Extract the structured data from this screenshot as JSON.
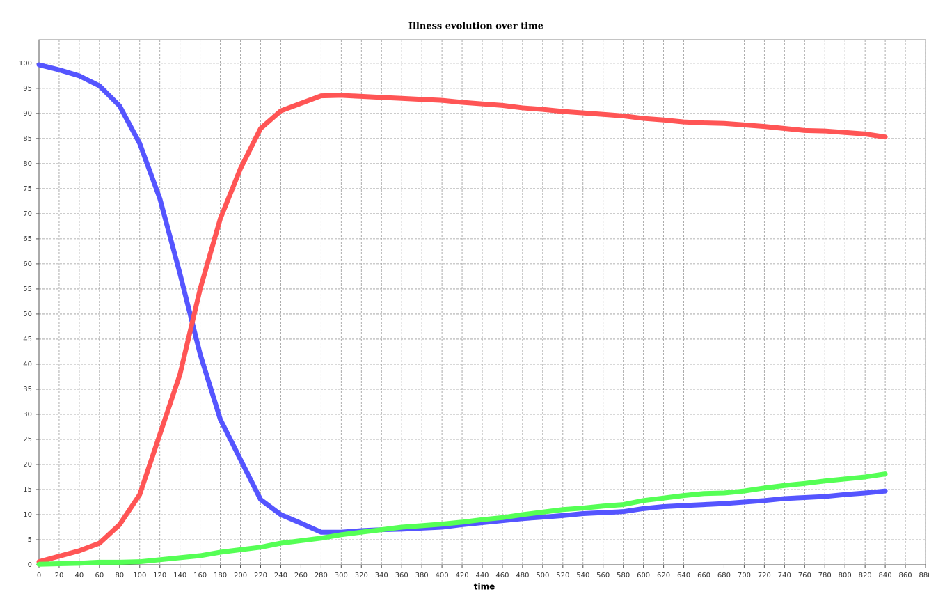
{
  "chart_data": {
    "type": "line",
    "title": "Illness evolution over time",
    "x_label": "time",
    "x": [
      0,
      20,
      40,
      60,
      80,
      100,
      120,
      140,
      160,
      180,
      200,
      220,
      240,
      260,
      280,
      300,
      320,
      340,
      360,
      380,
      400,
      420,
      440,
      460,
      480,
      500,
      520,
      540,
      560,
      580,
      600,
      620,
      640,
      660,
      680,
      700,
      720,
      740,
      760,
      780,
      800,
      820,
      840
    ],
    "series": [
      {
        "color": "#5555ff",
        "values": [
          99.7,
          98.7,
          97.5,
          95.5,
          91.5,
          84,
          73,
          58,
          42,
          29,
          21,
          13,
          10,
          8.3,
          6.5,
          6.5,
          6.8,
          7,
          7.1,
          7.3,
          7.5,
          8,
          8.4,
          8.8,
          9.2,
          9.5,
          9.8,
          10.2,
          10.4,
          10.6,
          11.2,
          11.6,
          11.8,
          12,
          12.2,
          12.5,
          12.8,
          13.2,
          13.4,
          13.6,
          14,
          14.3,
          14.7
        ]
      },
      {
        "color": "#ff5555",
        "values": [
          0.6,
          1.7,
          2.8,
          4.3,
          8,
          14,
          26,
          38,
          55,
          69,
          79,
          87,
          90.5,
          92,
          93.5,
          93.6,
          93.4,
          93.2,
          93,
          92.8,
          92.6,
          92.2,
          91.9,
          91.6,
          91.1,
          90.8,
          90.4,
          90.1,
          89.8,
          89.5,
          89,
          88.7,
          88.3,
          88.1,
          88,
          87.7,
          87.4,
          87,
          86.6,
          86.5,
          86.2,
          85.9,
          85.3
        ]
      },
      {
        "color": "#55ff55",
        "values": [
          0.1,
          0.2,
          0.3,
          0.5,
          0.5,
          0.6,
          1,
          1.4,
          1.8,
          2.5,
          3,
          3.5,
          4.3,
          4.8,
          5.3,
          6,
          6.5,
          7,
          7.5,
          7.8,
          8.1,
          8.5,
          9,
          9.4,
          10,
          10.5,
          11,
          11.3,
          11.7,
          12,
          12.8,
          13.3,
          13.8,
          14.2,
          14.3,
          14.7,
          15.3,
          15.8,
          16.2,
          16.7,
          17.1,
          17.5,
          18.1
        ]
      }
    ],
    "xlim": [
      0,
      880
    ],
    "xticks": [
      0,
      20,
      40,
      60,
      80,
      100,
      120,
      140,
      160,
      180,
      200,
      220,
      240,
      260,
      280,
      300,
      320,
      340,
      360,
      380,
      400,
      420,
      440,
      460,
      480,
      500,
      520,
      540,
      560,
      580,
      600,
      620,
      640,
      660,
      680,
      700,
      720,
      740,
      760,
      780,
      800,
      820,
      840,
      860,
      880
    ],
    "ylim": [
      0,
      104.7
    ],
    "yticks": [
      0,
      5,
      10,
      15,
      20,
      25,
      30,
      35,
      40,
      45,
      50,
      55,
      60,
      65,
      70,
      75,
      80,
      85,
      90,
      95,
      100
    ],
    "grid": true
  }
}
